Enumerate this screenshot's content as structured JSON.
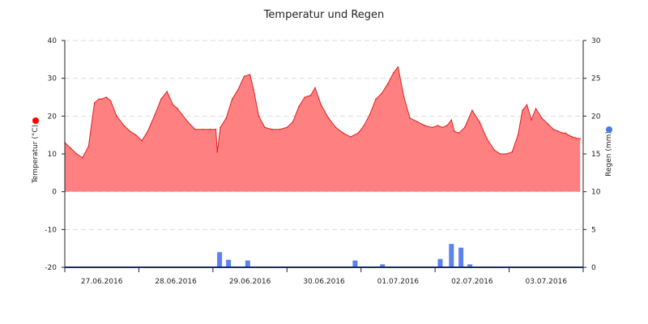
{
  "chart_data": {
    "type": "area",
    "title": "Temperatur und Regen",
    "x_tick_labels": [
      "27.06.2016",
      "28.06.2016",
      "29.06.2016",
      "30.06.2016",
      "01.07.2016",
      "02.07.2016",
      "03.07.2016"
    ],
    "y_left": {
      "label": "Temperatur (°C)",
      "ylim": [
        -20,
        40
      ],
      "ticks": [
        -20,
        -10,
        0,
        10,
        20,
        30,
        40
      ],
      "marker_color": "#ff0000"
    },
    "y_right": {
      "label": "Regen (mm)",
      "ylim": [
        0,
        30
      ],
      "ticks": [
        0,
        5,
        10,
        15,
        20,
        25,
        30
      ],
      "marker_color": "#4a7ae8"
    },
    "grid": true,
    "legend": "none",
    "series": [
      {
        "name": "Temperatur",
        "axis": "left",
        "kind": "area",
        "color": "#ff8080",
        "line_color": "#e02020",
        "x_days": [
          0,
          0.08,
          0.16,
          0.24,
          0.32,
          0.4,
          0.46,
          0.5,
          0.56,
          0.62,
          0.7,
          0.8,
          0.88,
          0.96,
          1.04,
          1.12,
          1.22,
          1.3,
          1.38,
          1.46,
          1.52,
          1.58,
          1.66,
          1.76,
          1.86,
          1.96,
          2.04,
          2.06,
          2.1,
          2.18,
          2.26,
          2.34,
          2.42,
          2.5,
          2.55,
          2.62,
          2.7,
          2.8,
          2.9,
          3.0,
          3.08,
          3.16,
          3.24,
          3.32,
          3.38,
          3.46,
          3.56,
          3.66,
          3.76,
          3.86,
          3.96,
          4.04,
          4.12,
          4.2,
          4.28,
          4.36,
          4.44,
          4.5,
          4.58,
          4.66,
          4.76,
          4.86,
          4.96,
          5.04,
          5.1,
          5.16,
          5.22,
          5.26,
          5.32,
          5.4,
          5.5,
          5.6,
          5.7,
          5.8,
          5.88,
          5.96,
          6.04,
          6.12,
          6.18,
          6.24,
          6.3,
          6.36,
          6.44,
          6.52,
          6.6,
          6.66,
          6.72,
          6.76,
          6.8,
          6.85,
          6.9,
          6.96
        ],
        "values": [
          13.0,
          11.5,
          10.0,
          9.0,
          12.0,
          23.5,
          24.5,
          24.5,
          25.0,
          24.0,
          20.0,
          17.5,
          16.0,
          15.0,
          13.5,
          16.0,
          20.5,
          24.5,
          26.5,
          23.0,
          22.0,
          20.5,
          18.5,
          16.5,
          16.5,
          16.5,
          16.5,
          10.5,
          17.0,
          19.5,
          24.5,
          27.0,
          30.5,
          31.0,
          27.0,
          20.0,
          17.0,
          16.5,
          16.5,
          17.0,
          18.5,
          22.5,
          25.0,
          25.5,
          27.5,
          23.0,
          19.5,
          17.0,
          15.5,
          14.5,
          15.5,
          17.5,
          20.5,
          24.5,
          26.0,
          28.5,
          31.5,
          33.0,
          25.0,
          19.5,
          18.5,
          17.5,
          17.0,
          17.5,
          17.0,
          17.5,
          19.0,
          16.0,
          15.5,
          17.0,
          21.5,
          18.5,
          14.0,
          11.0,
          10.0,
          10.0,
          10.5,
          15.0,
          21.5,
          23.0,
          19.0,
          22.0,
          19.5,
          18.0,
          16.5,
          16.0,
          15.5,
          15.5,
          15.0,
          14.5,
          14.2,
          14.0
        ]
      },
      {
        "name": "Regen",
        "axis": "right",
        "kind": "bar",
        "color": "#5b83ea",
        "x_days": [
          2.09,
          2.21,
          2.47,
          3.92,
          4.29,
          5.07,
          5.22,
          5.35,
          5.47
        ],
        "values": [
          2.0,
          1.0,
          0.9,
          0.9,
          0.4,
          1.1,
          3.1,
          2.6,
          0.4
        ]
      }
    ]
  }
}
